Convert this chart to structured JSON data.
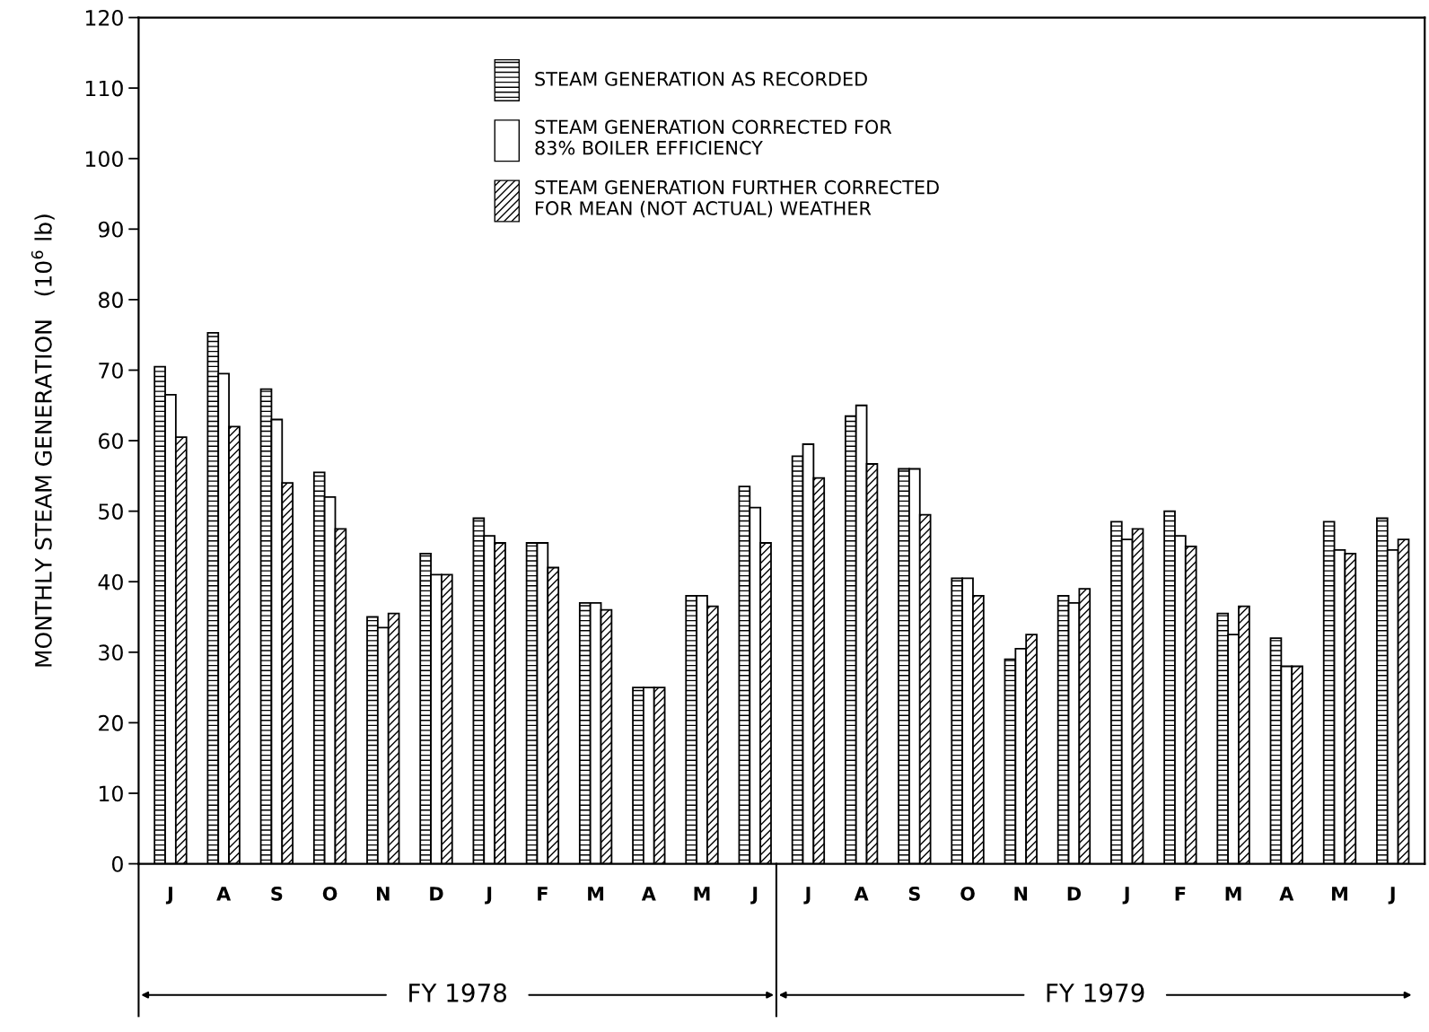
{
  "chart_data": {
    "type": "bar",
    "ylabel": "MONTHLY STEAM GENERATION   (10$^{6}$ lb)",
    "categories": [
      "J",
      "A",
      "S",
      "O",
      "N",
      "D",
      "J",
      "F",
      "M",
      "A",
      "M",
      "J",
      "J",
      "A",
      "S",
      "O",
      "N",
      "D",
      "J",
      "F",
      "M",
      "A",
      "M",
      "J"
    ],
    "series": [
      {
        "name": "STEAM GENERATION AS RECORDED",
        "color": "#000000",
        "values": [
          70.5,
          75.3,
          67.3,
          55.5,
          35,
          44,
          49,
          45.5,
          37,
          25,
          38,
          53.5,
          57.8,
          63.5,
          56,
          40.5,
          29,
          38,
          48.5,
          50,
          35.5,
          32,
          48.5,
          49
        ]
      },
      {
        "name": "STEAM GENERATION CORRECTED FOR\n83% BOILER EFFICIENCY",
        "color": "#000000",
        "values": [
          66.5,
          69.5,
          63,
          52,
          33.5,
          41,
          46.5,
          45.5,
          37,
          25,
          38,
          50.5,
          59.5,
          65,
          56,
          40.5,
          30.5,
          37,
          46,
          46.5,
          32.5,
          28,
          44.5,
          44.5
        ]
      },
      {
        "name": "STEAM GENERATION FURTHER CORRECTED\nFOR MEAN (NOT ACTUAL) WEATHER",
        "color": "#000000",
        "values": [
          60.5,
          62,
          54,
          47.5,
          35.5,
          41,
          45.5,
          42,
          36,
          25,
          36.5,
          45.5,
          54.7,
          56.7,
          49.5,
          38,
          32.5,
          39,
          47.5,
          45,
          36.5,
          28,
          44,
          46
        ]
      }
    ],
    "ylim": [
      0,
      120
    ],
    "yticks": [
      0,
      10,
      20,
      30,
      40,
      50,
      60,
      70,
      80,
      90,
      100,
      110,
      120
    ],
    "grid": false,
    "legend": "top",
    "annotations": [
      "FY 1978",
      "FY 1979"
    ]
  }
}
